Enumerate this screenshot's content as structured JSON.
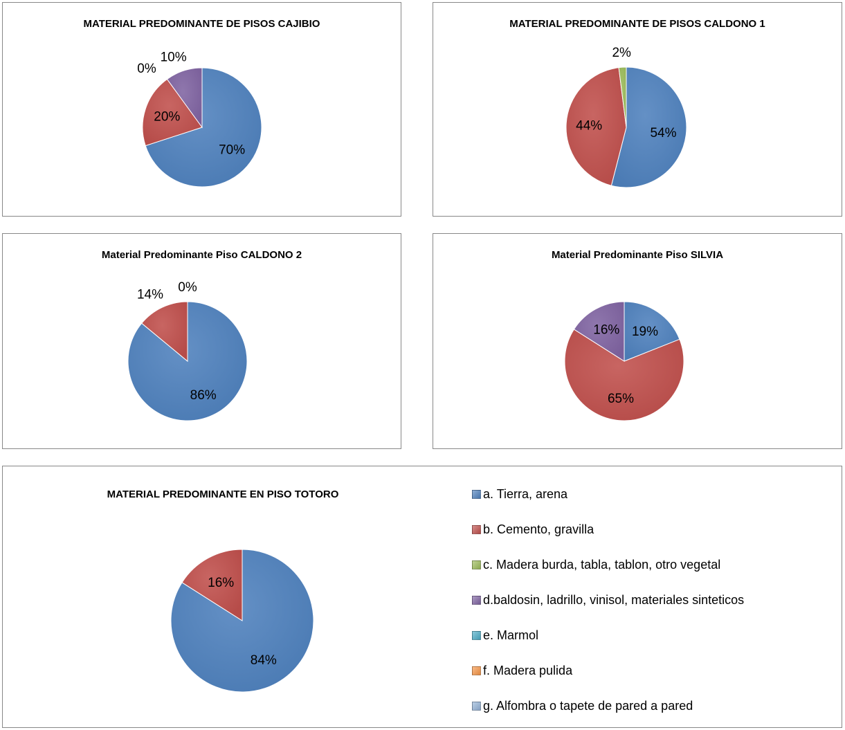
{
  "categories": [
    "a. Tierra, arena",
    "b. Cemento, gravilla",
    "c. Madera burda, tabla, tablon, otro vegetal",
    "d.baldosin, ladrillo, vinisol, materiales sinteticos",
    "e. Marmol",
    "f. Madera pulida",
    "g. Alfombra o tapete de pared a pared"
  ],
  "colors": [
    "#4F81BD",
    "#C0504D",
    "#9BBB59",
    "#8064A2",
    "#4BACC6",
    "#F79646",
    "#95B3D7"
  ],
  "chart_data": [
    {
      "type": "pie",
      "title": "MATERIAL PREDOMINANTE DE PISOS CAJIBIO",
      "slices": [
        {
          "category": "a. Tierra, arena",
          "value": 70,
          "label": "70%"
        },
        {
          "category": "b. Cemento, gravilla",
          "value": 20,
          "label": "20%"
        },
        {
          "category": "c. Madera burda, tabla, tablon, otro vegetal",
          "value": 0,
          "label": "0%"
        },
        {
          "category": "d.baldosin, ladrillo, vinisol, materiales sinteticos",
          "value": 10,
          "label": "10%"
        }
      ]
    },
    {
      "type": "pie",
      "title": "MATERIAL PREDOMINANTE DE PISOS CALDONO 1",
      "slices": [
        {
          "category": "a. Tierra, arena",
          "value": 54,
          "label": "54%"
        },
        {
          "category": "b. Cemento, gravilla",
          "value": 44,
          "label": "44%"
        },
        {
          "category": "c. Madera burda, tabla, tablon, otro vegetal",
          "value": 2,
          "label": "2%"
        }
      ]
    },
    {
      "type": "pie",
      "title": "Material Predominante Piso CALDONO 2",
      "slices": [
        {
          "category": "a. Tierra, arena",
          "value": 86,
          "label": "86%"
        },
        {
          "category": "b. Cemento, gravilla",
          "value": 14,
          "label": "14%"
        },
        {
          "category": "c. Madera burda, tabla, tablon, otro vegetal",
          "value": 0,
          "label": "0%"
        }
      ]
    },
    {
      "type": "pie",
      "title": "Material Predominante Piso SILVIA",
      "slices": [
        {
          "category": "a. Tierra, arena",
          "value": 19,
          "label": "19%"
        },
        {
          "category": "b. Cemento, gravilla",
          "value": 65,
          "label": "65%"
        },
        {
          "category": "d.baldosin, ladrillo, vinisol, materiales sinteticos",
          "value": 16,
          "label": "16%"
        }
      ]
    },
    {
      "type": "pie",
      "title": "MATERIAL PREDOMINANTE EN PISO TOTORO",
      "legend_position": "right",
      "slices": [
        {
          "category": "a. Tierra, arena",
          "value": 84,
          "label": "84%"
        },
        {
          "category": "b. Cemento, gravilla",
          "value": 16,
          "label": "16%"
        }
      ]
    }
  ]
}
